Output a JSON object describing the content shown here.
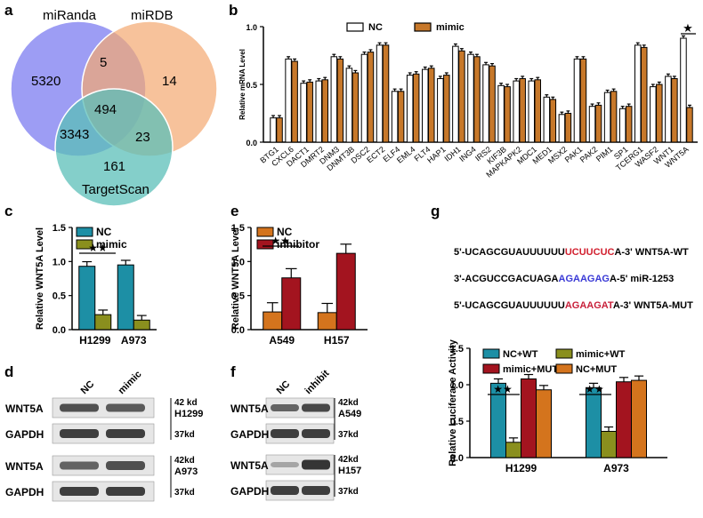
{
  "panels": {
    "a": {
      "letter": "a",
      "sets": [
        {
          "name": "miRanda",
          "color": "#8c8cf2"
        },
        {
          "name": "miRDB",
          "color": "#f4a870"
        },
        {
          "name": "TargetScan",
          "color": "#5bbfb8"
        }
      ],
      "counts": {
        "miRanda_only": "5320",
        "miRDB_only": "14",
        "TargetScan_only": "161",
        "miRanda_miRDB": "5",
        "miRanda_TargetScan": "3343",
        "miRDB_TargetScan": "23",
        "all": "494"
      }
    },
    "b": {
      "letter": "b",
      "legend": [
        "NC",
        "mimic"
      ],
      "star": "★",
      "star_gene": "WNT5A"
    },
    "c": {
      "letter": "c",
      "legend": [
        "NC",
        "mimic"
      ],
      "stars": "★★"
    },
    "e": {
      "letter": "e",
      "legend": [
        "NC",
        "inhibitor"
      ],
      "stars": "★★"
    },
    "g": {
      "letter": "g",
      "legend": [
        "NC+WT",
        "mimic+WT",
        "mimic+MUT",
        "NC+MUT"
      ],
      "stars": [
        "★★",
        "★★"
      ],
      "sequences": [
        {
          "pre": "5'-UCAGCGUAUUUUUU",
          "mid": "UCUUCUC",
          "post": "A-3'",
          "label": "WNT5A-WT",
          "mid_color": "#d2202f"
        },
        {
          "pre": "3'-ACGUCCGACUAGA",
          "mid": "AGAAGAG",
          "post": "A-5'",
          "label": "miR-1253",
          "mid_color": "#3a3ad6"
        },
        {
          "pre": "5'-UCAGCGUAUUUUUU",
          "mid": "AGAAGAT",
          "post": "A-3'",
          "label": "WNT5A-MUT",
          "mid_color": "#c8203a"
        }
      ]
    },
    "d": {
      "letter": "d",
      "lanes": [
        "NC",
        "mimic"
      ],
      "blocks": [
        {
          "rows": [
            {
              "protein": "WNT5A",
              "kd": "42 kd"
            },
            {
              "protein": "GAPDH",
              "kd": "37kd"
            }
          ],
          "cell": "H1299"
        },
        {
          "rows": [
            {
              "protein": "WNT5A",
              "kd": "42kd"
            },
            {
              "protein": "GAPDH",
              "kd": "37kd"
            }
          ],
          "cell": "A973"
        }
      ]
    },
    "f": {
      "letter": "f",
      "lanes": [
        "NC",
        "inhibit"
      ],
      "blocks": [
        {
          "rows": [
            {
              "protein": "WNT5A",
              "kd": "42kd"
            },
            {
              "protein": "GAPDH",
              "kd": "37kd"
            }
          ],
          "cell": "A549"
        },
        {
          "rows": [
            {
              "protein": "WNT5A",
              "kd": "42kd"
            },
            {
              "protein": "GAPDH",
              "kd": "37kd"
            }
          ],
          "cell": "H157"
        }
      ]
    }
  },
  "chart_data": [
    {
      "id": "b",
      "type": "bar",
      "ylabel": "Relative mRNA Level",
      "ylim": [
        0,
        1.0
      ],
      "yticks": [
        "0.0",
        "0.5",
        "1.0"
      ],
      "categories": [
        "BTG1",
        "CXCL6",
        "DACT1",
        "DMRT2",
        "DNM3",
        "DNMT3B",
        "DSC2",
        "ECT2",
        "ELF4",
        "EML4",
        "FLT4",
        "HAP1",
        "IDH1",
        "ING4",
        "IRS2",
        "KIF3B",
        "MAPKAPK2",
        "MDC1",
        "MED1",
        "MSX2",
        "PAK1",
        "PAK2",
        "PIM1",
        "SP1",
        "TCERG1",
        "WASF2",
        "WNT1",
        "WNT5A"
      ],
      "series": [
        {
          "name": "NC",
          "color": "#ffffff",
          "values": [
            0.21,
            0.72,
            0.51,
            0.53,
            0.74,
            0.64,
            0.76,
            0.84,
            0.44,
            0.58,
            0.63,
            0.55,
            0.83,
            0.76,
            0.67,
            0.49,
            0.53,
            0.53,
            0.39,
            0.24,
            0.72,
            0.31,
            0.43,
            0.29,
            0.84,
            0.48,
            0.57,
            0.9
          ]
        },
        {
          "name": "mimic",
          "color": "#c7782a",
          "values": [
            0.21,
            0.7,
            0.52,
            0.54,
            0.72,
            0.6,
            0.78,
            0.84,
            0.44,
            0.59,
            0.64,
            0.58,
            0.79,
            0.74,
            0.66,
            0.48,
            0.55,
            0.54,
            0.37,
            0.25,
            0.72,
            0.32,
            0.44,
            0.31,
            0.82,
            0.5,
            0.55,
            0.3
          ]
        }
      ]
    },
    {
      "id": "c",
      "type": "bar",
      "ylabel": "Relative WNT5A  Level",
      "ylim": [
        0,
        1.5
      ],
      "yticks": [
        "0.0",
        "0.5",
        "1.0",
        "1.5"
      ],
      "categories": [
        "H1299",
        "A973"
      ],
      "series": [
        {
          "name": "NC",
          "color": "#1d8fa5",
          "values": [
            0.93,
            0.95
          ]
        },
        {
          "name": "mimic",
          "color": "#8a8f1e",
          "values": [
            0.22,
            0.14
          ]
        }
      ]
    },
    {
      "id": "e",
      "type": "bar",
      "ylabel": "Relative WNT5A Level",
      "ylim": [
        0,
        1.5
      ],
      "yticks": [
        "0.0",
        "0.5",
        "1.0",
        "1.5"
      ],
      "categories": [
        "A549",
        "H157"
      ],
      "series": [
        {
          "name": "NC",
          "color": "#d4741d",
          "values": [
            0.26,
            0.25
          ]
        },
        {
          "name": "inhibitor",
          "color": "#a3141f",
          "values": [
            0.76,
            1.12
          ]
        }
      ]
    },
    {
      "id": "g",
      "type": "bar",
      "ylabel": "Relative Luciferase Activity",
      "ylim": [
        0,
        1.5
      ],
      "yticks": [
        "0.0",
        "0.5",
        "1.0",
        "1.5"
      ],
      "categories": [
        "H1299",
        "A973"
      ],
      "series": [
        {
          "name": "NC+WT",
          "color": "#1d8fa5",
          "values": [
            1.02,
            0.96
          ]
        },
        {
          "name": "mimic+WT",
          "color": "#8a8f1e",
          "values": [
            0.21,
            0.36
          ]
        },
        {
          "name": "mimic+MUT",
          "color": "#a3141f",
          "values": [
            1.08,
            1.04
          ]
        },
        {
          "name": "NC+MUT",
          "color": "#d4741d",
          "values": [
            0.93,
            1.06
          ]
        }
      ]
    }
  ]
}
